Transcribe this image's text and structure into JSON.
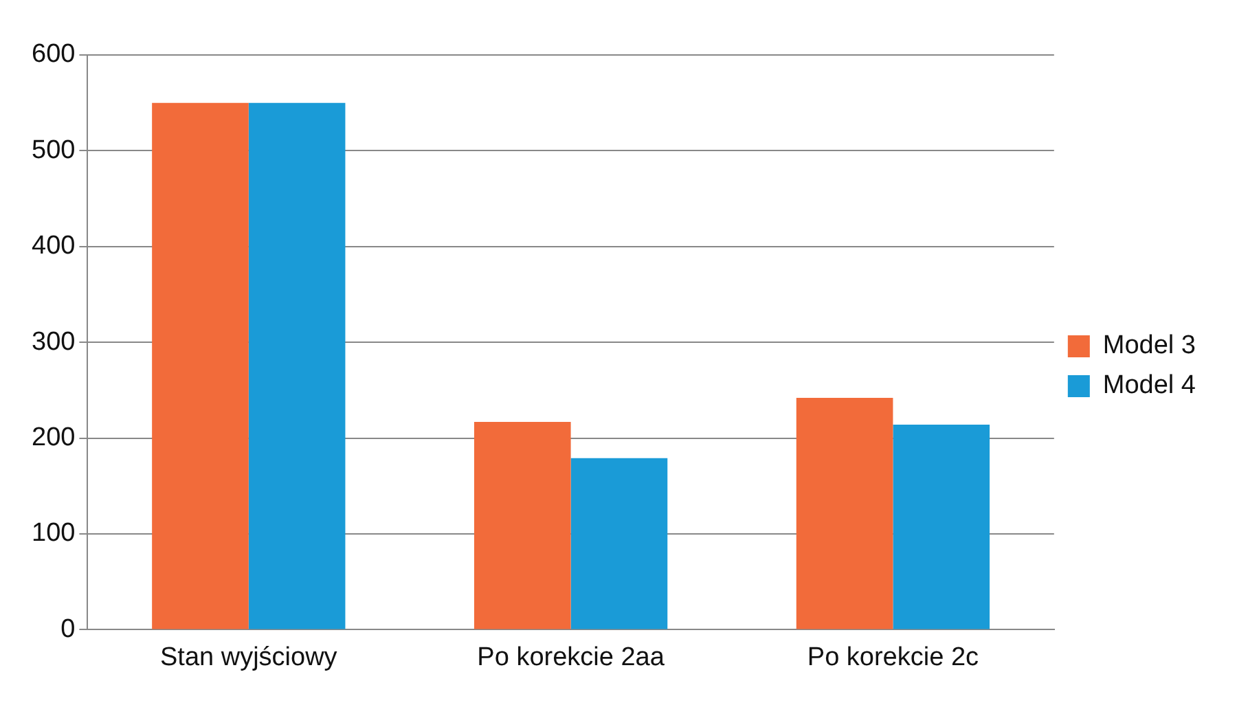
{
  "chart_data": {
    "type": "bar",
    "categories": [
      "Stan wyjściowy",
      "Po korekcie 2aa",
      "Po korekcie 2c"
    ],
    "series": [
      {
        "name": "Model 3",
        "color": "#f26b3a",
        "values": [
          550,
          217,
          242
        ]
      },
      {
        "name": "Model 4",
        "color": "#1a9bd7",
        "values": [
          550,
          179,
          214
        ]
      }
    ],
    "ylim": [
      0,
      600
    ],
    "yticks": [
      0,
      100,
      200,
      300,
      400,
      500,
      600
    ],
    "grid": "y",
    "legend": "right"
  }
}
